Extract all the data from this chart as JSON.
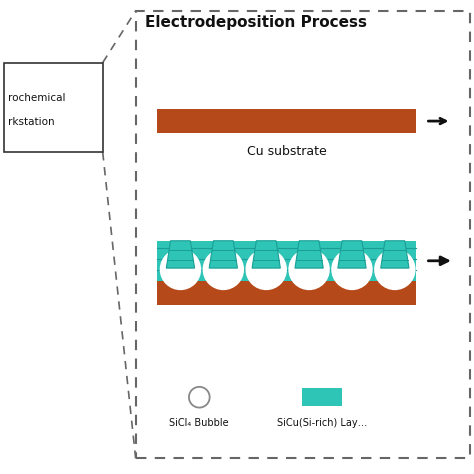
{
  "title": "Electrodeposition Process",
  "cu_color": "#B5491A",
  "teal_color": "#2EC4B6",
  "teal_stripe_color": "#1A9E96",
  "white_color": "#FFFFFF",
  "bg_color": "#FFFFFF",
  "arrow_color": "#111111",
  "text_color": "#111111",
  "dashed_color": "#666666",
  "left_box_text1": "rochemical",
  "left_box_text2": "rkstation",
  "cu_label": "Cu substrate",
  "legend_bubble_label": "SiCl₄ Bubble",
  "legend_teal_label": "SiCu(Si-rich) Lay…",
  "figsize": [
    4.74,
    4.74
  ],
  "dpi": 100
}
